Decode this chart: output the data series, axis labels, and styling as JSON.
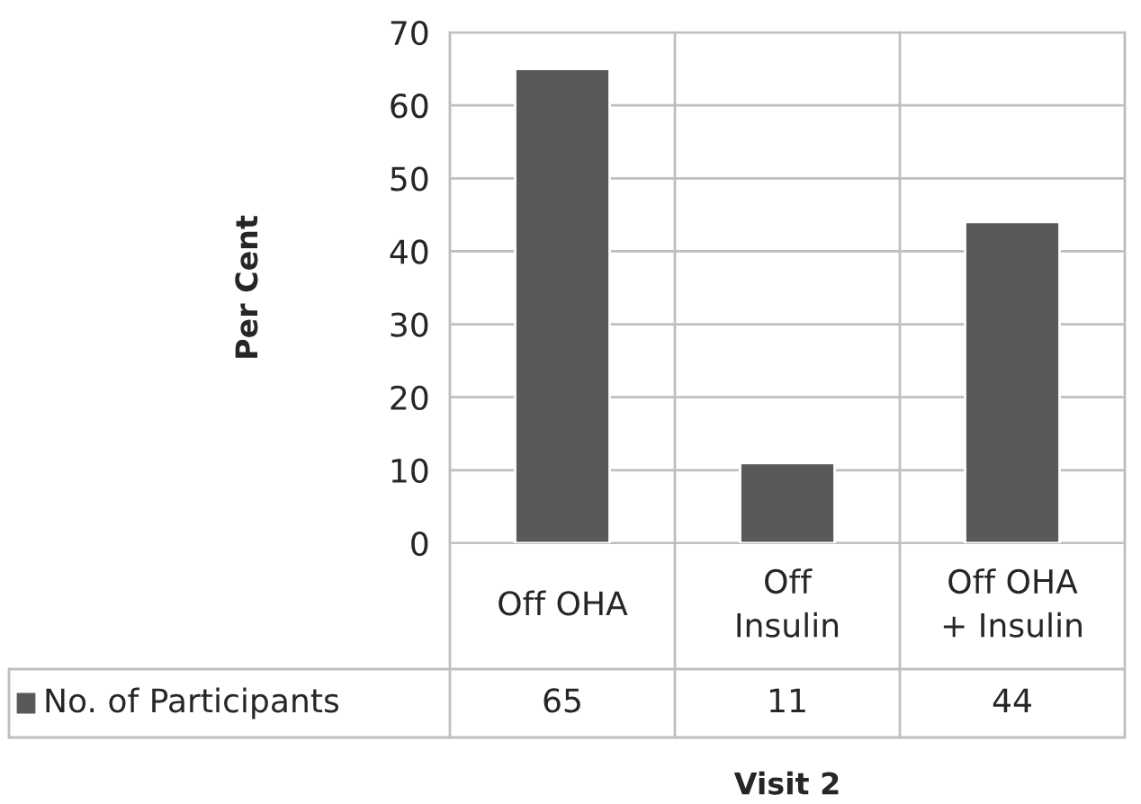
{
  "chart_data": {
    "type": "bar",
    "categories": [
      "Off OHA",
      "Off\nInsulin",
      "Off OHA\n+ Insulin"
    ],
    "series": [
      {
        "name": "No. of Participants",
        "color": "#595959",
        "values": [
          65,
          11,
          44
        ]
      }
    ],
    "ylabel": "Per Cent",
    "xlabel": "Visit 2",
    "ylim": [
      0,
      70
    ],
    "yticks": [
      0,
      10,
      20,
      30,
      40,
      50,
      60,
      70
    ],
    "grid": "y",
    "legend": "bottom left",
    "data_labels": true
  }
}
